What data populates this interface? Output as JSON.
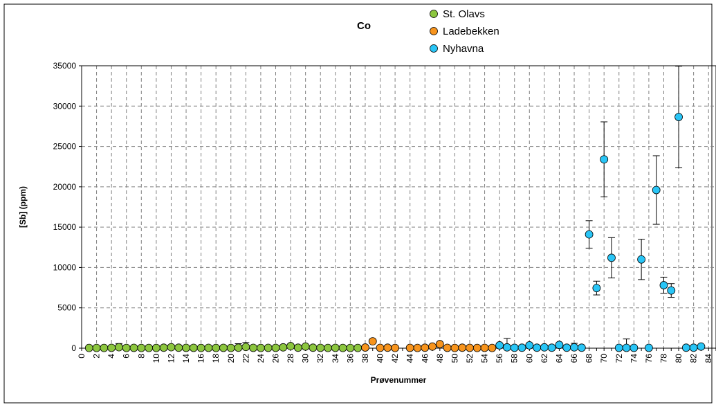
{
  "chart_data": {
    "type": "scatter",
    "title": "Co",
    "xlabel": "Prøvenummer",
    "ylabel": "[Sb] (ppm)",
    "xlim": [
      0,
      85
    ],
    "ylim": [
      0,
      35000
    ],
    "x_ticks": [
      "0",
      "2",
      "4",
      "6",
      "8",
      "10",
      "12",
      "14",
      "16",
      "18",
      "20",
      "22",
      "24",
      "26",
      "28",
      "30",
      "32",
      "34",
      "36",
      "38",
      "40",
      "42",
      "44",
      "46",
      "48",
      "50",
      "52",
      "54",
      "56",
      "58",
      "60",
      "62",
      "64",
      "66",
      "68",
      "70",
      "72",
      "74",
      "76",
      "78",
      "80",
      "82",
      "84"
    ],
    "y_ticks": [
      "0",
      "5000",
      "10000",
      "15000",
      "20000",
      "25000",
      "30000",
      "35000"
    ],
    "grid": true,
    "legend_position": "top-center",
    "series": [
      {
        "name": "St. Olavs",
        "color": "#8cc63f",
        "points": [
          {
            "x": 1,
            "y": 30
          },
          {
            "x": 2,
            "y": 30
          },
          {
            "x": 3,
            "y": 30
          },
          {
            "x": 4,
            "y": 40
          },
          {
            "x": 5,
            "y": 120,
            "err": 450
          },
          {
            "x": 6,
            "y": 30
          },
          {
            "x": 7,
            "y": 40
          },
          {
            "x": 8,
            "y": 30
          },
          {
            "x": 9,
            "y": 30
          },
          {
            "x": 10,
            "y": 30
          },
          {
            "x": 11,
            "y": 60
          },
          {
            "x": 12,
            "y": 120
          },
          {
            "x": 13,
            "y": 60
          },
          {
            "x": 14,
            "y": 40
          },
          {
            "x": 15,
            "y": 40
          },
          {
            "x": 16,
            "y": 30,
            "err": 200
          },
          {
            "x": 17,
            "y": 40
          },
          {
            "x": 18,
            "y": 30
          },
          {
            "x": 19,
            "y": 40
          },
          {
            "x": 20,
            "y": 30
          },
          {
            "x": 21,
            "y": 60,
            "err": 500
          },
          {
            "x": 22,
            "y": 150,
            "err": 550
          },
          {
            "x": 23,
            "y": 40
          },
          {
            "x": 24,
            "y": 30
          },
          {
            "x": 25,
            "y": 40
          },
          {
            "x": 26,
            "y": 40
          },
          {
            "x": 27,
            "y": 100
          },
          {
            "x": 28,
            "y": 250
          },
          {
            "x": 29,
            "y": 60
          },
          {
            "x": 30,
            "y": 200
          },
          {
            "x": 31,
            "y": 60
          },
          {
            "x": 32,
            "y": 40
          },
          {
            "x": 33,
            "y": 30
          },
          {
            "x": 34,
            "y": 40
          },
          {
            "x": 35,
            "y": 30
          },
          {
            "x": 36,
            "y": 30
          },
          {
            "x": 37,
            "y": 30
          }
        ]
      },
      {
        "name": "Ladebekken",
        "color": "#f7941d",
        "points": [
          {
            "x": 38,
            "y": 80
          },
          {
            "x": 39,
            "y": 850
          },
          {
            "x": 40,
            "y": 40
          },
          {
            "x": 41,
            "y": 60
          },
          {
            "x": 42,
            "y": 30
          },
          {
            "x": 44,
            "y": 40
          },
          {
            "x": 45,
            "y": 30
          },
          {
            "x": 46,
            "y": 60
          },
          {
            "x": 47,
            "y": 200
          },
          {
            "x": 48,
            "y": 500
          },
          {
            "x": 49,
            "y": 40
          },
          {
            "x": 50,
            "y": 30
          },
          {
            "x": 51,
            "y": 60
          },
          {
            "x": 52,
            "y": 40
          },
          {
            "x": 53,
            "y": 30
          },
          {
            "x": 54,
            "y": 40
          },
          {
            "x": 55,
            "y": 30
          }
        ]
      },
      {
        "name": "Nyhavna",
        "color": "#29c5f6",
        "points": [
          {
            "x": 56,
            "y": 350
          },
          {
            "x": 57,
            "y": 100,
            "err": 1100
          },
          {
            "x": 58,
            "y": 50
          },
          {
            "x": 59,
            "y": 60
          },
          {
            "x": 60,
            "y": 350,
            "err": 200
          },
          {
            "x": 61,
            "y": 60
          },
          {
            "x": 62,
            "y": 100,
            "err": 200
          },
          {
            "x": 63,
            "y": 60
          },
          {
            "x": 64,
            "y": 400,
            "err": 250
          },
          {
            "x": 65,
            "y": 60
          },
          {
            "x": 66,
            "y": 100,
            "err": 500
          },
          {
            "x": 67,
            "y": 60
          },
          {
            "x": 68,
            "y": 14100,
            "err": 1700
          },
          {
            "x": 69,
            "y": 7450,
            "err": 850
          },
          {
            "x": 70,
            "y": 23400,
            "err": 4650
          },
          {
            "x": 71,
            "y": 11200,
            "err": 2500
          },
          {
            "x": 72,
            "y": 40
          },
          {
            "x": 73,
            "y": 40,
            "err": 1100
          },
          {
            "x": 74,
            "y": 40
          },
          {
            "x": 75,
            "y": 11000,
            "err": 2500
          },
          {
            "x": 76,
            "y": 40
          },
          {
            "x": 77,
            "y": 19600,
            "err": 4250
          },
          {
            "x": 78,
            "y": 7800,
            "err": 1000
          },
          {
            "x": 79,
            "y": 7150,
            "err": 850
          },
          {
            "x": 80,
            "y": 28650,
            "err": 6300
          },
          {
            "x": 81,
            "y": 60
          },
          {
            "x": 82,
            "y": 60
          },
          {
            "x": 83,
            "y": 200
          }
        ]
      }
    ]
  }
}
